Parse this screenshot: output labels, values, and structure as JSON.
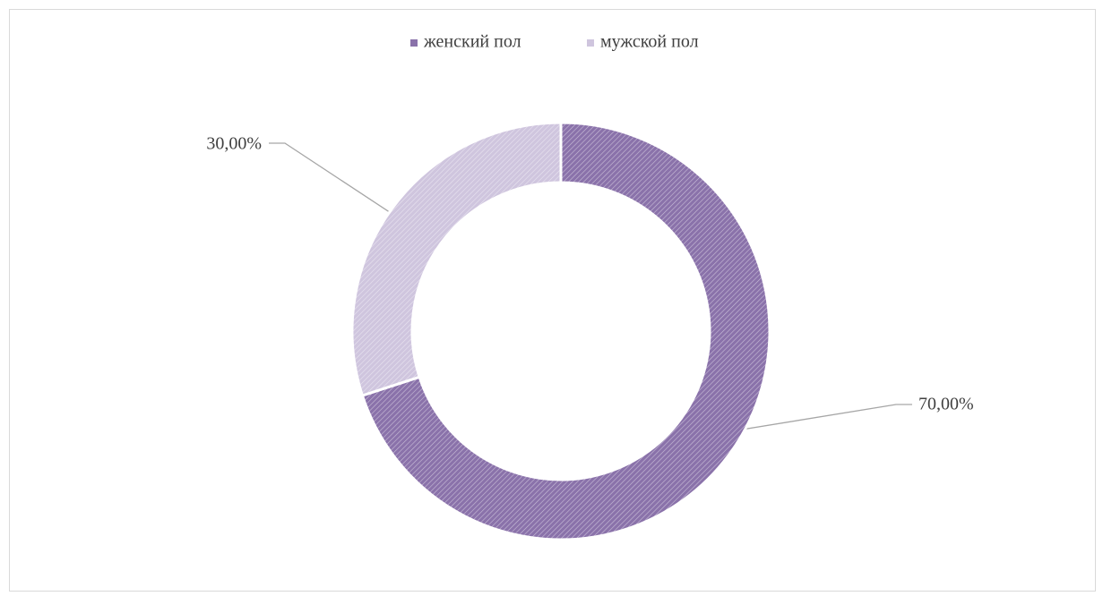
{
  "chart_data": {
    "type": "pie",
    "categories": [
      "женский пол",
      "мужской пол"
    ],
    "values": [
      70,
      30
    ],
    "value_labels": [
      "70,00%",
      "30,00%"
    ],
    "colors": [
      "#8a72aa",
      "#cfc5de"
    ],
    "legend": "top"
  }
}
